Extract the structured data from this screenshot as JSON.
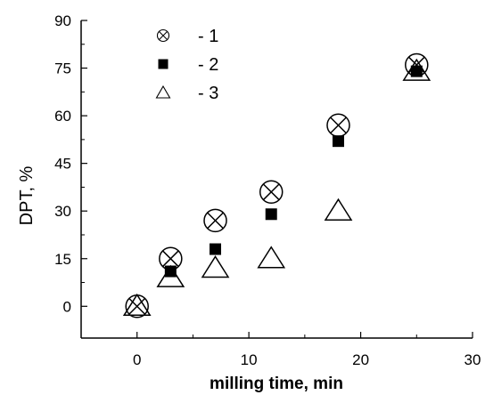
{
  "chart_data": {
    "type": "scatter",
    "title": "",
    "xlabel": "milling time, min",
    "ylabel": "DPT, %",
    "xlim": [
      -5,
      30
    ],
    "ylim": [
      -10,
      90
    ],
    "xticks": [
      0,
      10,
      20,
      30
    ],
    "yticks": [
      0,
      15,
      30,
      45,
      60,
      75,
      90
    ],
    "grid": false,
    "legend_position": "top-left",
    "series": [
      {
        "name": "- 1",
        "marker": "circle-x",
        "x": [
          0,
          3,
          7,
          12,
          18,
          25
        ],
        "y": [
          0,
          15,
          27,
          36,
          57,
          76
        ]
      },
      {
        "name": "- 2",
        "marker": "filled-square",
        "x": [
          3,
          7,
          12,
          18,
          25
        ],
        "y": [
          11,
          18,
          29,
          52,
          74
        ]
      },
      {
        "name": "- 3",
        "marker": "open-triangle",
        "x": [
          0,
          3,
          7,
          12,
          18,
          25
        ],
        "y": [
          0,
          9,
          12,
          15,
          30,
          74
        ]
      }
    ]
  }
}
